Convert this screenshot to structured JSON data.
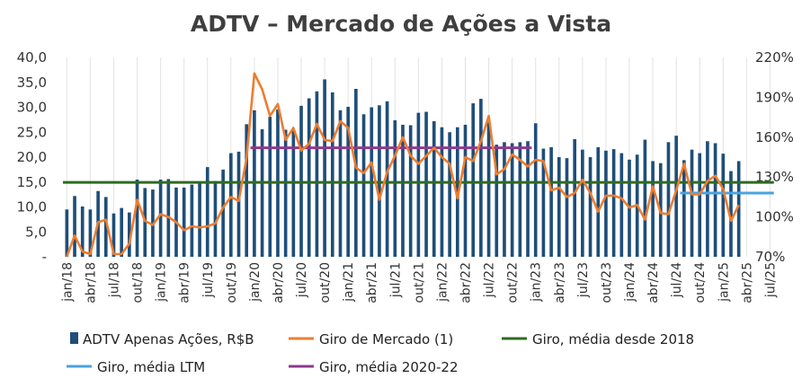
{
  "chart_data": {
    "type": "bar",
    "title": "ADTV – Mercado de Ações a Vista",
    "y_left": {
      "ylim": [
        0,
        40
      ],
      "ticks": [
        "-",
        "5,0",
        "10,0",
        "15,0",
        "20,0",
        "25,0",
        "30,0",
        "35,0",
        "40,0"
      ]
    },
    "y_right": {
      "ylim": [
        70,
        220
      ],
      "ticks": [
        "70%",
        "100%",
        "130%",
        "160%",
        "190%",
        "220%"
      ]
    },
    "x_tick_labels": [
      "jan/18",
      "abr/18",
      "jul/18",
      "out/18",
      "jan/19",
      "abr/19",
      "jul/19",
      "out/19",
      "jan/20",
      "abr/20",
      "jul/20",
      "out/20",
      "jan/21",
      "abr/21",
      "jul/21",
      "out/21",
      "jan/22",
      "abr/22",
      "jul/22",
      "out/22",
      "jan/23",
      "abr/23",
      "jul/23",
      "out/23",
      "jan/24",
      "abr/24",
      "jul/24",
      "out/24",
      "jan/25",
      "abr/25",
      "jul/25"
    ],
    "months_start": "jan/18",
    "series": [
      {
        "name": "ADTV Apenas Ações, R$B",
        "type": "bar",
        "axis": "left",
        "color": "#1f4e79",
        "values": [
          9.5,
          12.2,
          10.1,
          9.5,
          13.2,
          12.0,
          8.7,
          9.8,
          8.9,
          15.5,
          13.8,
          13.5,
          15.5,
          15.6,
          13.9,
          13.9,
          14.5,
          15.0,
          18.0,
          15.2,
          17.5,
          20.8,
          21.1,
          26.6,
          29.4,
          25.6,
          28.1,
          29.6,
          25.5,
          25.4,
          30.3,
          31.8,
          33.2,
          35.6,
          33.0,
          29.4,
          30.1,
          33.7,
          28.6,
          30.0,
          30.4,
          31.2,
          27.4,
          26.5,
          26.4,
          28.9,
          29.1,
          27.2,
          26.0,
          25.0,
          26.0,
          26.5,
          30.8,
          31.7,
          27.0,
          22.5,
          23.0,
          22.8,
          23.0,
          23.2,
          26.8,
          21.7,
          22.0,
          20.0,
          19.8,
          23.6,
          21.5,
          20.0,
          22.0,
          21.3,
          21.6,
          20.8,
          19.5,
          20.5,
          23.5,
          19.2,
          18.8,
          23.0,
          24.3,
          19.4,
          21.5,
          20.8,
          23.2,
          22.8,
          20.7,
          17.2,
          19.2
        ],
        "value_labels": [
          "9,5",
          "12,2",
          "10,1",
          "9,5",
          "13,2",
          "12,0",
          "8,7",
          "9,8",
          "8,9",
          "15,5",
          "13,8",
          "13,5",
          "15,5",
          "15,6",
          "13,9",
          "13,9",
          "14,5",
          "15,0",
          "18,0",
          "15,2",
          "17,5",
          "20,8",
          "21,1",
          "26,6",
          "29,4",
          "25,6",
          "28,1",
          "29,6",
          "25,5",
          "25,4",
          "30,3",
          "31,8",
          "33,2",
          "35,6",
          "33,0",
          "29,4",
          "30,1",
          "33,7",
          "28,6",
          "30,0",
          "30,4",
          "31,2",
          "27,4",
          "26,5",
          "26,4",
          "28,9",
          "29,1",
          "27,2",
          "26,0",
          "25,0",
          "26,0",
          "26,5",
          "30,8",
          "31,7",
          "27,0",
          "22,5",
          "23,0",
          "22,8",
          "23,0",
          "23,2",
          "26,8",
          "21,7",
          "22,0",
          "20,0",
          "19,8",
          "23,6",
          "21,5",
          "20,0",
          "22,0",
          "21,3",
          "21,6",
          "20,8",
          "19,5",
          "20,5",
          "23,5",
          "19,2",
          "18,8",
          "23,0",
          "24,3",
          "19,4",
          "21,5",
          "20,8",
          "23,2",
          "22,8",
          "20,7",
          "17,2",
          "19,2"
        ]
      },
      {
        "name": "Giro de Mercado (1)",
        "type": "line",
        "axis": "right",
        "color": "#ed7d31",
        "values": [
          70,
          86,
          74,
          72,
          96,
          98,
          72,
          72,
          80,
          113,
          97,
          94,
          102,
          100,
          96,
          90,
          93,
          92,
          93,
          95,
          107,
          115,
          112,
          144,
          208,
          196,
          176,
          185,
          158,
          167,
          150,
          155,
          170,
          158,
          157,
          172,
          167,
          137,
          133,
          141,
          113,
          134,
          146,
          160,
          146,
          140,
          146,
          152,
          145,
          140,
          114,
          145,
          142,
          157,
          176,
          132,
          136,
          147,
          143,
          138,
          143,
          142,
          120,
          122,
          115,
          118,
          128,
          118,
          104,
          116,
          116,
          114,
          107,
          109,
          98,
          123,
          103,
          102,
          120,
          140,
          117,
          117,
          127,
          131,
          121,
          97,
          109
        ]
      },
      {
        "name": "Giro, média desde 2018",
        "type": "line",
        "axis": "right",
        "color": "#2e6b1f",
        "values": [
          126,
          126
        ],
        "span": [
          "jan/18",
          "jul/25"
        ]
      },
      {
        "name": "Giro, média LTM",
        "type": "line",
        "axis": "right",
        "color": "#4aa3df",
        "values": [
          118,
          118
        ],
        "span": [
          "ago/24",
          "jul/25"
        ]
      },
      {
        "name": "Giro, média 2020-22",
        "type": "line",
        "axis": "right",
        "color": "#8e3a8e",
        "values": [
          152,
          152
        ],
        "span": [
          "jan/20",
          "dez/22"
        ]
      }
    ],
    "legend": {
      "position": "bottom",
      "rows": [
        [
          "ADTV Apenas Ações, R$B",
          "Giro de Mercado (1)",
          "Giro, média desde 2018"
        ],
        [
          "Giro, média LTM",
          "Giro, média 2020-22"
        ]
      ]
    },
    "grid": "vertical"
  }
}
